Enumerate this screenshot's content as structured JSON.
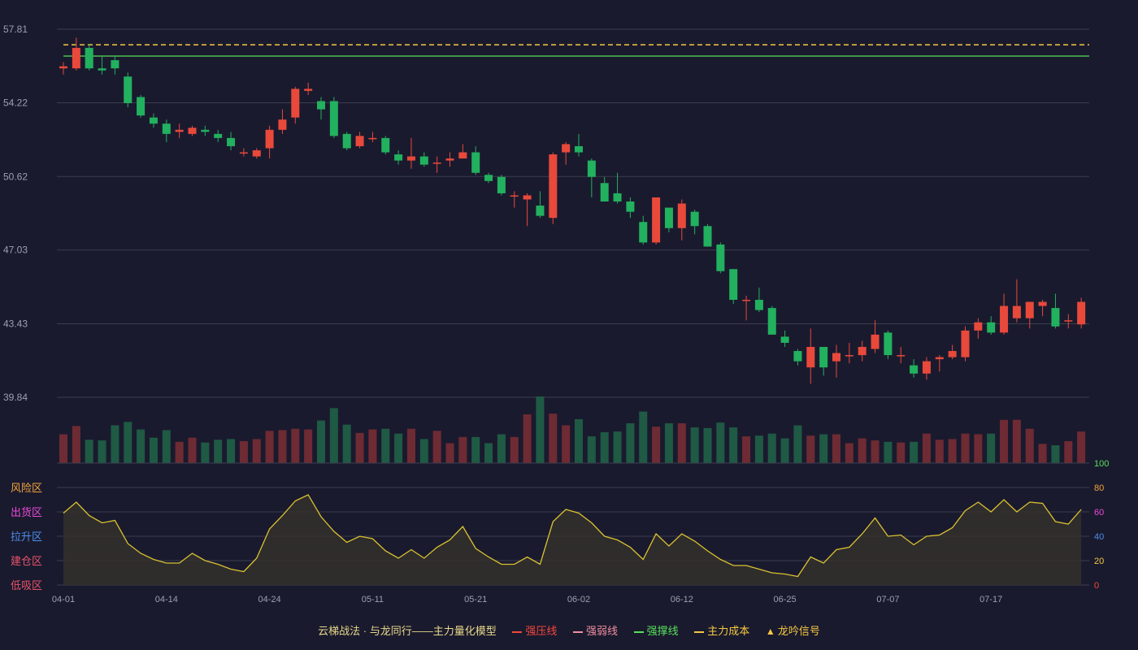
{
  "colors": {
    "background": "#1a1a2e",
    "up": "#e8493b",
    "down": "#22b15f",
    "vol_up": "#6e2b33",
    "vol_down": "#1f5a44",
    "grid": "#3a3d4f",
    "axis_label": "#9da0ad",
    "resistance": "#56e05a",
    "main_cost": "#f5c842",
    "risk_line": "#d9c22f",
    "risk_fill": "#34302c"
  },
  "chart_data": [
    {
      "type": "candlestick",
      "y_ticks": [
        "57.81",
        "54.22",
        "50.62",
        "47.03",
        "43.43",
        "39.84"
      ],
      "ylim": [
        39.84,
        57.81
      ],
      "x_tick_labels": [
        {
          "index": 0,
          "label": "04-01"
        },
        {
          "index": 8,
          "label": "04-14"
        },
        {
          "index": 16,
          "label": "04-24"
        },
        {
          "index": 24,
          "label": "05-11"
        },
        {
          "index": 32,
          "label": "05-21"
        },
        {
          "index": 40,
          "label": "06-02"
        },
        {
          "index": 48,
          "label": "06-12"
        },
        {
          "index": 56,
          "label": "06-25"
        },
        {
          "index": 64,
          "label": "07-07"
        },
        {
          "index": 72,
          "label": "07-17"
        }
      ],
      "series": [
        {
          "name": "",
          "ohlc": [
            [
              55.9,
              56.0,
              56.2,
              55.6
            ],
            [
              55.9,
              56.9,
              57.4,
              55.8
            ],
            [
              56.9,
              55.9,
              57.1,
              55.8
            ],
            [
              55.9,
              55.8,
              56.5,
              55.6
            ],
            [
              56.3,
              55.9,
              56.5,
              55.6
            ],
            [
              55.5,
              54.2,
              55.7,
              54.0
            ],
            [
              54.5,
              53.6,
              54.6,
              53.5
            ],
            [
              53.5,
              53.2,
              53.7,
              53.0
            ],
            [
              53.2,
              52.7,
              53.4,
              52.3
            ],
            [
              52.8,
              52.9,
              53.2,
              52.5
            ],
            [
              52.7,
              53.0,
              53.1,
              52.6
            ],
            [
              52.9,
              52.8,
              53.1,
              52.6
            ],
            [
              52.7,
              52.5,
              52.9,
              52.3
            ],
            [
              52.5,
              52.1,
              52.8,
              51.9
            ],
            [
              51.8,
              51.8,
              52.0,
              51.6
            ],
            [
              51.6,
              51.9,
              52.0,
              51.5
            ],
            [
              52.0,
              52.9,
              53.1,
              51.5
            ],
            [
              52.9,
              53.4,
              53.9,
              52.7
            ],
            [
              53.5,
              54.9,
              55.0,
              53.2
            ],
            [
              54.8,
              54.9,
              55.2,
              54.6
            ],
            [
              54.3,
              53.9,
              54.5,
              53.4
            ],
            [
              54.3,
              52.6,
              54.5,
              52.5
            ],
            [
              52.7,
              52.0,
              52.8,
              51.9
            ],
            [
              52.1,
              52.6,
              52.8,
              52.0
            ],
            [
              52.5,
              52.5,
              52.8,
              52.3
            ],
            [
              52.5,
              51.8,
              52.6,
              51.7
            ],
            [
              51.7,
              51.4,
              51.9,
              51.2
            ],
            [
              51.4,
              51.6,
              52.5,
              51.0
            ],
            [
              51.6,
              51.2,
              51.8,
              51.1
            ],
            [
              51.3,
              51.3,
              51.6,
              50.8
            ],
            [
              51.4,
              51.5,
              51.8,
              51.1
            ],
            [
              51.5,
              51.8,
              52.2,
              51.5
            ],
            [
              51.8,
              50.8,
              52.1,
              50.7
            ],
            [
              50.7,
              50.4,
              50.8,
              50.3
            ],
            [
              50.6,
              49.8,
              50.7,
              49.7
            ],
            [
              49.7,
              49.7,
              49.9,
              49.1
            ],
            [
              49.5,
              49.7,
              49.8,
              48.2
            ],
            [
              49.2,
              48.7,
              49.9,
              48.6
            ],
            [
              48.6,
              51.7,
              51.8,
              48.3
            ],
            [
              51.8,
              52.2,
              52.3,
              51.2
            ],
            [
              52.1,
              51.8,
              52.7,
              51.6
            ],
            [
              51.4,
              50.6,
              51.5,
              49.6
            ],
            [
              50.3,
              49.4,
              50.6,
              49.4
            ],
            [
              49.8,
              49.4,
              50.8,
              49.3
            ],
            [
              49.4,
              48.9,
              49.6,
              48.6
            ],
            [
              48.4,
              47.4,
              48.7,
              47.3
            ],
            [
              47.4,
              49.6,
              49.6,
              47.3
            ],
            [
              49.1,
              48.1,
              49.1,
              47.9
            ],
            [
              48.1,
              49.3,
              49.5,
              47.5
            ],
            [
              48.9,
              48.2,
              49.0,
              47.8
            ],
            [
              48.2,
              47.2,
              48.3,
              47.2
            ],
            [
              47.3,
              46.0,
              47.4,
              45.9
            ],
            [
              46.1,
              44.6,
              46.1,
              44.4
            ],
            [
              44.6,
              44.6,
              44.8,
              43.6
            ],
            [
              44.6,
              44.1,
              45.2,
              44.0
            ],
            [
              44.2,
              42.9,
              44.3,
              42.9
            ],
            [
              42.8,
              42.5,
              43.1,
              42.3
            ],
            [
              42.1,
              41.6,
              42.2,
              41.4
            ],
            [
              41.3,
              42.3,
              43.2,
              40.5
            ],
            [
              42.3,
              41.3,
              42.3,
              40.9
            ],
            [
              41.6,
              42.0,
              42.4,
              40.8
            ],
            [
              41.9,
              41.9,
              42.5,
              41.5
            ],
            [
              41.9,
              42.3,
              42.6,
              41.6
            ],
            [
              42.2,
              42.9,
              43.6,
              42.0
            ],
            [
              43.0,
              41.9,
              43.1,
              41.7
            ],
            [
              41.9,
              41.9,
              42.3,
              41.5
            ],
            [
              41.4,
              41.0,
              41.7,
              40.8
            ],
            [
              41.0,
              41.6,
              41.8,
              40.7
            ],
            [
              41.7,
              41.8,
              41.9,
              41.1
            ],
            [
              41.8,
              42.1,
              42.4,
              41.7
            ],
            [
              41.8,
              43.1,
              43.3,
              41.6
            ],
            [
              43.1,
              43.5,
              43.7,
              42.7
            ],
            [
              43.5,
              43.0,
              43.8,
              42.9
            ],
            [
              43.0,
              44.3,
              44.9,
              42.9
            ],
            [
              43.7,
              44.3,
              45.6,
              43.5
            ],
            [
              43.7,
              44.5,
              44.5,
              43.2
            ],
            [
              44.3,
              44.5,
              44.6,
              43.8
            ],
            [
              44.2,
              43.3,
              44.9,
              43.2
            ],
            [
              43.6,
              43.6,
              43.9,
              43.2
            ],
            [
              43.4,
              44.5,
              44.7,
              43.2
            ]
          ]
        }
      ],
      "horizontal_lines": [
        {
          "name": "强撑线",
          "value": 56.5
        },
        {
          "name": "主力成本",
          "value": 57.05
        }
      ]
    },
    {
      "type": "bar",
      "series": [
        {
          "name": "",
          "values": [
            42,
            54,
            34,
            33,
            55,
            60,
            49,
            37,
            48,
            31,
            37,
            30,
            34,
            35,
            32,
            35,
            47,
            48,
            50,
            49,
            62,
            80,
            56,
            44,
            49,
            50,
            43,
            50,
            35,
            47,
            29,
            38,
            38,
            29,
            42,
            38,
            71,
            97,
            72,
            55,
            64,
            39,
            45,
            46,
            58,
            75,
            53,
            58,
            58,
            52,
            51,
            59,
            52,
            39,
            40,
            43,
            36,
            55,
            40,
            42,
            42,
            29,
            36,
            33,
            31,
            30,
            31,
            43,
            34,
            35,
            43,
            42,
            43,
            63,
            63,
            50,
            28,
            26,
            32,
            46
          ]
        }
      ]
    },
    {
      "type": "area",
      "ylim": [
        0,
        100
      ],
      "y_ticks": [
        "0",
        "20",
        "40",
        "60",
        "80",
        "100"
      ],
      "zones": [
        {
          "label": "风险区",
          "value": 80,
          "color": "#f0a33a"
        },
        {
          "label": "出货区",
          "value": 60,
          "color": "#e84ad8"
        },
        {
          "label": "拉升区",
          "value": 40,
          "color": "#4a8ee8"
        },
        {
          "label": "建仓区",
          "value": 20,
          "color": "#e8536a"
        },
        {
          "label": "低吸区",
          "value": 0,
          "color": "#e8536a"
        }
      ],
      "series": [
        {
          "name": "",
          "values": [
            59,
            68,
            57,
            51,
            53,
            34,
            26,
            21,
            18,
            18,
            26,
            20,
            17,
            13,
            11,
            22,
            46,
            57,
            69,
            74,
            56,
            44,
            35,
            40,
            38,
            28,
            22,
            29,
            22,
            31,
            37,
            48,
            30,
            23,
            17,
            17,
            23,
            17,
            52,
            62,
            59,
            51,
            40,
            37,
            31,
            21,
            42,
            32,
            42,
            36,
            28,
            21,
            16,
            16,
            13,
            10,
            9,
            7,
            23,
            18,
            29,
            31,
            42,
            55,
            40,
            41,
            33,
            40,
            41,
            47,
            61,
            68,
            60,
            70,
            60,
            68,
            67,
            52,
            50,
            62
          ]
        }
      ],
      "y_tick_colors": [
        "#f5473b",
        "#f5c842",
        "#4a8ee8",
        "#e84ad8",
        "#f0a33a",
        "#56e05a"
      ]
    }
  ],
  "legend": {
    "title": "云梯战法 · 与龙同行——主力量化模型",
    "items": [
      {
        "label": "强压线",
        "symbol": "line",
        "color": "#f5473b"
      },
      {
        "label": "强弱线",
        "symbol": "dash",
        "color": "#f08fa0"
      },
      {
        "label": "强撑线",
        "symbol": "line",
        "color": "#56e05a"
      },
      {
        "label": "主力成本",
        "symbol": "dash",
        "color": "#f5c842"
      },
      {
        "label": "龙吟信号",
        "symbol": "triangle",
        "color": "#f5c842"
      }
    ]
  }
}
